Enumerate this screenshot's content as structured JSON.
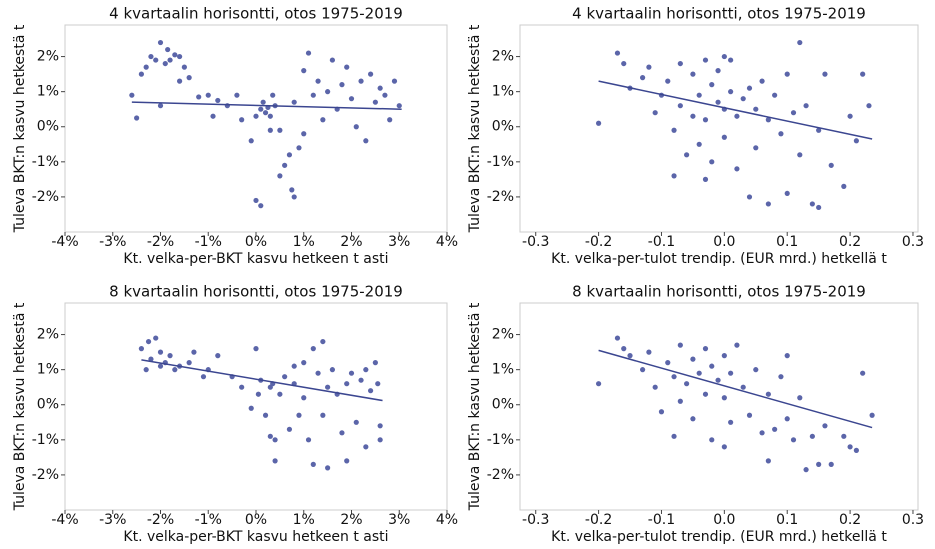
{
  "chart_data": [
    {
      "type": "scatter",
      "title": "4 kvartaalin horisontti, otos 1975-2019",
      "xlabel": "Kt. velka-per-BKT kasvu hetkeen t asti",
      "ylabel": "Tuleva BKT:n kasvu hetkestä t",
      "color": "#5b65a9",
      "x": [
        -2.6,
        -2.5,
        -2.4,
        -2.3,
        -2.2,
        -2.1,
        -2.0,
        -2.0,
        -1.9,
        -1.85,
        -1.8,
        -1.7,
        -1.6,
        -1.6,
        -1.5,
        -1.4,
        -1.2,
        -1.0,
        -0.9,
        -0.8,
        -0.6,
        -0.4,
        -0.3,
        -0.1,
        0.0,
        0.0,
        0.1,
        0.1,
        0.15,
        0.2,
        0.25,
        0.3,
        0.3,
        0.35,
        0.4,
        0.5,
        0.5,
        0.6,
        0.7,
        0.75,
        0.8,
        0.8,
        0.9,
        1.0,
        1.0,
        1.1,
        1.2,
        1.3,
        1.4,
        1.5,
        1.6,
        1.7,
        1.8,
        1.9,
        2.0,
        2.1,
        2.2,
        2.3,
        2.4,
        2.5,
        2.6,
        2.7,
        2.8,
        2.9,
        3.0
      ],
      "values": [
        0.9,
        0.25,
        1.5,
        1.7,
        2.0,
        1.9,
        2.4,
        0.6,
        1.8,
        2.2,
        1.9,
        2.05,
        2.0,
        1.3,
        1.7,
        1.4,
        0.85,
        0.9,
        0.3,
        0.75,
        0.6,
        0.9,
        0.2,
        -0.4,
        0.3,
        -2.1,
        -2.25,
        0.5,
        0.7,
        0.4,
        0.55,
        0.3,
        -0.1,
        0.9,
        0.6,
        -0.1,
        -1.4,
        -1.1,
        -0.8,
        -1.8,
        -2.0,
        0.7,
        -0.6,
        1.6,
        -0.2,
        2.1,
        0.9,
        1.3,
        0.2,
        1.0,
        1.9,
        0.5,
        1.2,
        1.7,
        0.8,
        0.0,
        1.3,
        -0.4,
        1.5,
        0.7,
        1.1,
        0.9,
        0.2,
        1.3,
        0.6
      ],
      "fit": {
        "color": "#3b4690",
        "x": [
          -2.6,
          3.05
        ],
        "values": [
          0.7,
          0.5
        ]
      },
      "xlim": [
        -4,
        4
      ],
      "ylim": [
        -3,
        2.9
      ],
      "xticks": [
        {
          "value": -4,
          "label": "-4%"
        },
        {
          "value": -3,
          "label": "-3%"
        },
        {
          "value": -2,
          "label": "-2%"
        },
        {
          "value": -1,
          "label": "-1%"
        },
        {
          "value": 0,
          "label": "0%"
        },
        {
          "value": 1,
          "label": "1%"
        },
        {
          "value": 2,
          "label": "2%"
        },
        {
          "value": 3,
          "label": "3%"
        },
        {
          "value": 4,
          "label": "4%"
        }
      ],
      "yticks": [
        {
          "value": -2,
          "label": "-2%"
        },
        {
          "value": -1,
          "label": "-1%"
        },
        {
          "value": 0,
          "label": "0%"
        },
        {
          "value": 1,
          "label": "1%"
        },
        {
          "value": 2,
          "label": "2%"
        }
      ]
    },
    {
      "type": "scatter",
      "title": "4 kvartaalin horisontti, otos 1975-2019",
      "xlabel": "Kt. velka-per-tulot trendip. (EUR mrd.) hetkellä t",
      "ylabel": "Tuleva BKT:n kasvu hetkestä t",
      "color": "#5b65a9",
      "x": [
        -0.2,
        -0.17,
        -0.16,
        -0.15,
        -0.13,
        -0.12,
        -0.11,
        -0.1,
        -0.09,
        -0.08,
        -0.07,
        -0.07,
        -0.06,
        -0.05,
        -0.05,
        -0.04,
        -0.04,
        -0.03,
        -0.03,
        -0.02,
        -0.02,
        -0.01,
        -0.01,
        0.0,
        0.0,
        0.0,
        0.01,
        0.01,
        0.02,
        0.02,
        0.03,
        0.04,
        0.05,
        0.05,
        0.06,
        0.07,
        0.07,
        0.08,
        0.09,
        0.1,
        0.1,
        0.11,
        0.12,
        0.12,
        0.13,
        0.14,
        0.15,
        0.15,
        0.16,
        0.17,
        0.19,
        0.2,
        0.21,
        0.22,
        0.23,
        -0.03,
        0.04,
        -0.08
      ],
      "values": [
        0.1,
        2.1,
        1.8,
        1.1,
        1.4,
        1.7,
        0.4,
        0.9,
        1.3,
        -0.1,
        0.6,
        1.8,
        -0.8,
        0.3,
        1.5,
        0.9,
        -0.5,
        1.9,
        0.2,
        1.2,
        -1.0,
        0.7,
        1.6,
        2.0,
        0.5,
        -0.3,
        1.0,
        1.9,
        0.3,
        -1.2,
        0.8,
        1.1,
        -0.6,
        0.5,
        1.3,
        -2.2,
        0.2,
        0.9,
        -0.2,
        1.5,
        -1.9,
        0.4,
        2.4,
        -0.8,
        0.6,
        -2.2,
        -2.3,
        -0.1,
        1.5,
        -1.1,
        -1.7,
        0.3,
        -0.4,
        1.5,
        0.6,
        -1.5,
        -2.0,
        -1.4
      ],
      "fit": {
        "color": "#3b4690",
        "x": [
          -0.2,
          0.235
        ],
        "values": [
          1.3,
          -0.35
        ]
      },
      "xlim": [
        -0.325,
        0.308
      ],
      "ylim": [
        -3,
        2.9
      ],
      "xticks": [
        -0.3,
        -0.2,
        -0.1,
        {
          "value": 0,
          "label": "0.0"
        },
        0.1,
        0.2,
        0.3
      ],
      "yticks": [
        {
          "value": -2,
          "label": "-2%"
        },
        {
          "value": -1,
          "label": "-1%"
        },
        {
          "value": 0,
          "label": "0%"
        },
        {
          "value": 1,
          "label": "1%"
        },
        {
          "value": 2,
          "label": "2%"
        }
      ]
    },
    {
      "type": "scatter",
      "title": "8 kvartaalin horisontti, otos 1975-2019",
      "xlabel": "Kt. velka-per-BKT kasvu hetkeen t asti",
      "ylabel": "Tuleva BKT:n kasvu hetkestä t",
      "color": "#5b65a9",
      "x": [
        -2.4,
        -2.3,
        -2.25,
        -2.2,
        -2.1,
        -2.0,
        -2.0,
        -1.9,
        -1.8,
        -1.7,
        -1.6,
        -1.4,
        -1.3,
        -1.1,
        -1.0,
        -0.8,
        -0.5,
        -0.3,
        -0.1,
        0.0,
        0.05,
        0.1,
        0.2,
        0.3,
        0.3,
        0.35,
        0.4,
        0.4,
        0.5,
        0.6,
        0.7,
        0.8,
        0.8,
        0.9,
        1.0,
        1.0,
        1.1,
        1.2,
        1.2,
        1.3,
        1.4,
        1.4,
        1.5,
        1.5,
        1.6,
        1.7,
        1.8,
        1.9,
        1.9,
        2.0,
        2.1,
        2.2,
        2.3,
        2.3,
        2.4,
        2.5,
        2.6,
        2.6,
        2.55
      ],
      "values": [
        1.6,
        1.0,
        1.8,
        1.3,
        1.9,
        1.5,
        1.1,
        1.2,
        1.4,
        1.0,
        1.1,
        1.2,
        1.5,
        0.8,
        1.0,
        1.4,
        0.8,
        0.5,
        -0.1,
        1.6,
        0.3,
        0.7,
        -0.3,
        0.5,
        -0.9,
        0.6,
        -1.0,
        -1.6,
        0.3,
        0.8,
        -0.7,
        0.6,
        1.1,
        -0.3,
        1.2,
        0.2,
        -1.0,
        1.6,
        -1.7,
        0.9,
        1.8,
        -0.3,
        -1.8,
        0.5,
        1.0,
        0.3,
        -0.8,
        0.6,
        -1.6,
        0.9,
        -0.5,
        0.7,
        1.0,
        -1.2,
        0.4,
        1.2,
        -1.0,
        -0.6,
        0.6
      ],
      "fit": {
        "color": "#3b4690",
        "x": [
          -2.4,
          2.65
        ],
        "values": [
          1.28,
          0.12
        ]
      },
      "xlim": [
        -4,
        4
      ],
      "ylim": [
        -3,
        2.9
      ],
      "xticks": [
        {
          "value": -4,
          "label": "-4%"
        },
        {
          "value": -3,
          "label": "-3%"
        },
        {
          "value": -2,
          "label": "-2%"
        },
        {
          "value": -1,
          "label": "-1%"
        },
        {
          "value": 0,
          "label": "0%"
        },
        {
          "value": 1,
          "label": "1%"
        },
        {
          "value": 2,
          "label": "2%"
        },
        {
          "value": 3,
          "label": "3%"
        },
        {
          "value": 4,
          "label": "4%"
        }
      ],
      "yticks": [
        {
          "value": -2,
          "label": "-2%"
        },
        {
          "value": -1,
          "label": "-1%"
        },
        {
          "value": 0,
          "label": "0%"
        },
        {
          "value": 1,
          "label": "1%"
        },
        {
          "value": 2,
          "label": "2%"
        }
      ]
    },
    {
      "type": "scatter",
      "title": "8 kvartaalin horisontti, otos 1975-2019",
      "xlabel": "Kt. velka-per-tulot trendip. (EUR mrd.) hetkellä t",
      "ylabel": "Tuleva BKT:n kasvu hetkestä t",
      "color": "#5b65a9",
      "x": [
        -0.2,
        -0.17,
        -0.16,
        -0.15,
        -0.13,
        -0.12,
        -0.11,
        -0.1,
        -0.09,
        -0.08,
        -0.07,
        -0.07,
        -0.06,
        -0.05,
        -0.05,
        -0.04,
        -0.03,
        -0.03,
        -0.02,
        -0.02,
        -0.01,
        0.0,
        0.0,
        0.01,
        0.01,
        0.02,
        0.03,
        0.04,
        0.05,
        0.06,
        0.07,
        0.07,
        0.08,
        0.09,
        0.1,
        0.1,
        0.11,
        0.12,
        0.13,
        0.14,
        0.15,
        0.16,
        0.17,
        0.19,
        0.2,
        0.21,
        0.22,
        0.235,
        -0.08,
        0.0
      ],
      "values": [
        0.6,
        1.9,
        1.6,
        1.4,
        1.0,
        1.5,
        0.5,
        -0.2,
        1.2,
        0.8,
        1.7,
        0.1,
        0.6,
        1.3,
        -0.4,
        0.9,
        1.6,
        0.3,
        1.1,
        -1.0,
        0.7,
        1.4,
        0.2,
        0.9,
        -0.5,
        1.7,
        0.5,
        -0.3,
        1.0,
        -0.8,
        0.3,
        -1.6,
        -0.7,
        0.8,
        -0.4,
        1.4,
        -1.0,
        0.2,
        -1.85,
        -0.9,
        -1.7,
        -0.6,
        -1.7,
        -0.9,
        -1.2,
        -1.3,
        0.9,
        -0.3,
        -0.9,
        -1.2
      ],
      "fit": {
        "color": "#3b4690",
        "x": [
          -0.2,
          0.235
        ],
        "values": [
          1.55,
          -0.65
        ]
      },
      "xlim": [
        -0.325,
        0.308
      ],
      "ylim": [
        -3,
        2.9
      ],
      "xticks": [
        -0.3,
        -0.2,
        -0.1,
        {
          "value": 0,
          "label": "0.0"
        },
        0.1,
        0.2,
        0.3
      ],
      "yticks": [
        {
          "value": -2,
          "label": "-2%"
        },
        {
          "value": -1,
          "label": "-1%"
        },
        {
          "value": 0,
          "label": "0%"
        },
        {
          "value": 1,
          "label": "1%"
        },
        {
          "value": 2,
          "label": "2%"
        }
      ]
    }
  ]
}
